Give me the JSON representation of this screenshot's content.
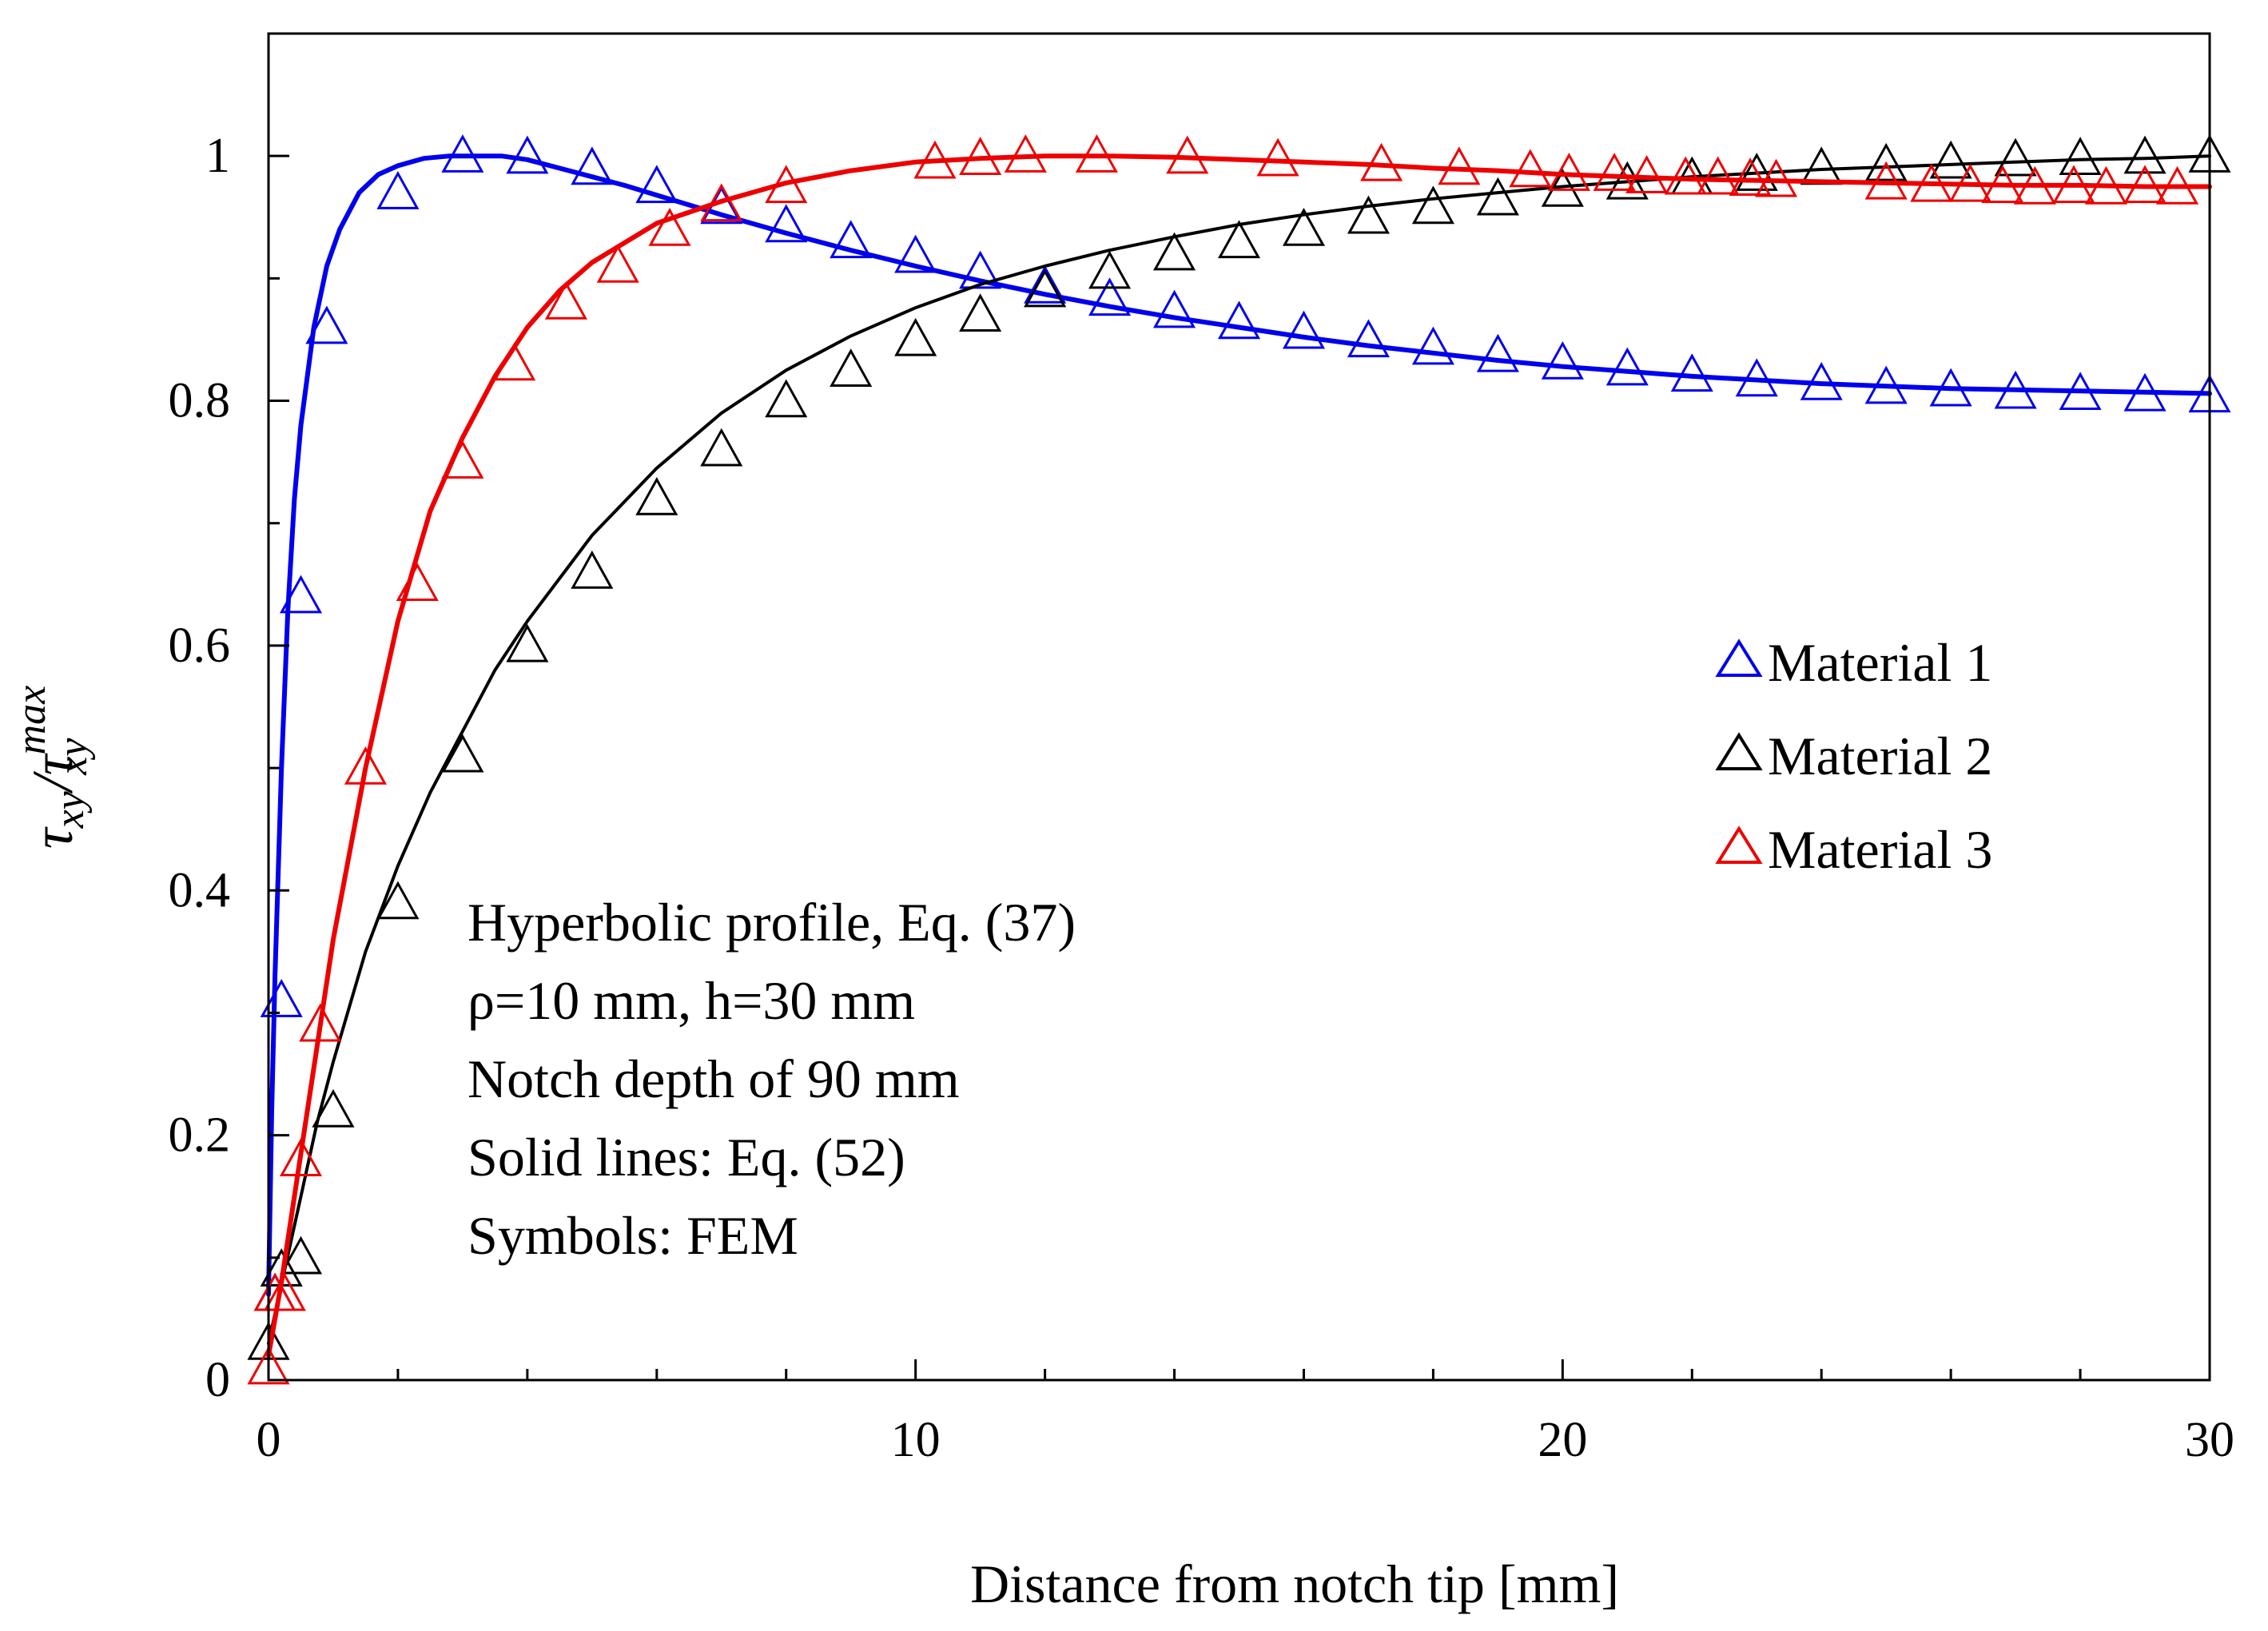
{
  "chart_data": {
    "type": "line",
    "title": "",
    "xlabel": "Distance from notch tip [mm]",
    "ylabel": {
      "main": "τ",
      "sub": "xy",
      "slash": "/",
      "sup": "max"
    },
    "xlim": [
      0,
      30
    ],
    "ylim": [
      0,
      1.1
    ],
    "x_ticks": [
      0,
      10,
      20,
      30
    ],
    "x_tick_labels": [
      "0",
      "10",
      "20",
      "30"
    ],
    "y_ticks": [
      0,
      0.2,
      0.4,
      0.6,
      0.8,
      1
    ],
    "y_tick_labels": [
      "0",
      "0.2",
      "0.4",
      "0.6",
      "0.8",
      "1"
    ],
    "grid": false,
    "legend_position": "right",
    "annotations": [
      "Hyperbolic profile, Eq. (37)",
      "ρ=10 mm, h=30 mm",
      "Notch depth of 90 mm",
      "Solid lines: Eq. (52)",
      "Symbols: FEM"
    ],
    "series": [
      {
        "name": "Material 1",
        "color": "#0000ee",
        "marker": "triangle-open",
        "line_x": [
          0,
          0.05,
          0.1,
          0.2,
          0.3,
          0.4,
          0.5,
          0.7,
          0.9,
          1.1,
          1.4,
          1.7,
          2,
          2.4,
          2.8,
          3.2,
          3.6,
          4,
          4.5,
          5,
          5.5,
          6,
          7,
          8,
          9,
          10,
          11,
          12,
          13,
          14,
          15,
          16,
          17,
          18,
          19,
          20,
          21,
          22,
          23,
          24,
          25,
          26,
          27,
          28,
          29,
          30
        ],
        "line_y": [
          0.07,
          0.22,
          0.33,
          0.5,
          0.63,
          0.72,
          0.78,
          0.86,
          0.91,
          0.94,
          0.97,
          0.985,
          0.992,
          0.998,
          1.0,
          1.0,
          1.0,
          0.997,
          0.99,
          0.983,
          0.976,
          0.968,
          0.952,
          0.937,
          0.923,
          0.91,
          0.898,
          0.887,
          0.877,
          0.868,
          0.86,
          0.852,
          0.845,
          0.839,
          0.833,
          0.828,
          0.824,
          0.82,
          0.817,
          0.814,
          0.812,
          0.81,
          0.809,
          0.808,
          0.807,
          0.806
        ],
        "points_x": [
          0.1,
          0.2,
          0.5,
          0.9,
          2,
          3,
          4,
          5,
          6,
          7,
          8,
          9,
          10,
          11,
          12,
          13,
          14,
          15,
          16,
          17,
          18,
          19,
          20,
          21,
          22,
          23,
          24,
          25,
          26,
          27,
          28,
          29,
          30
        ],
        "points_y": [
          0.07,
          0.31,
          0.64,
          0.86,
          0.97,
          1.0,
          0.999,
          0.99,
          0.975,
          0.958,
          0.943,
          0.93,
          0.918,
          0.905,
          0.893,
          0.883,
          0.873,
          0.864,
          0.856,
          0.849,
          0.843,
          0.837,
          0.831,
          0.826,
          0.821,
          0.817,
          0.814,
          0.811,
          0.809,
          0.807,
          0.806,
          0.805,
          0.804
        ]
      },
      {
        "name": "Material 2",
        "color": "#000000",
        "marker": "triangle-open",
        "line_x": [
          0,
          0.25,
          0.5,
          0.75,
          1,
          1.5,
          2,
          2.5,
          3,
          3.5,
          4,
          5,
          6,
          7,
          8,
          9,
          10,
          11,
          12,
          13,
          14,
          15,
          16,
          17,
          18,
          19,
          20,
          21,
          22,
          23,
          24,
          25,
          26,
          27,
          28,
          29,
          30
        ],
        "line_y": [
          0.03,
          0.09,
          0.15,
          0.21,
          0.26,
          0.35,
          0.42,
          0.48,
          0.53,
          0.58,
          0.62,
          0.69,
          0.745,
          0.79,
          0.825,
          0.853,
          0.876,
          0.895,
          0.91,
          0.923,
          0.934,
          0.944,
          0.952,
          0.959,
          0.965,
          0.97,
          0.975,
          0.979,
          0.983,
          0.986,
          0.989,
          0.991,
          0.993,
          0.995,
          0.997,
          0.998,
          1.0
        ],
        "points_x": [
          0,
          0.2,
          0.5,
          1,
          2,
          3,
          4,
          5,
          6,
          7,
          8,
          9,
          10,
          11,
          12,
          13,
          14,
          15,
          16,
          17,
          18,
          19,
          20,
          21,
          22,
          23,
          24,
          25,
          26,
          27,
          28,
          29,
          30
        ],
        "points_y": [
          0.03,
          0.09,
          0.1,
          0.22,
          0.39,
          0.51,
          0.6,
          0.66,
          0.72,
          0.76,
          0.8,
          0.825,
          0.85,
          0.87,
          0.89,
          0.905,
          0.92,
          0.93,
          0.94,
          0.95,
          0.958,
          0.965,
          0.972,
          0.978,
          0.982,
          0.985,
          0.99,
          0.993,
          0.995,
          0.997,
          0.998,
          0.999,
          1.0
        ]
      },
      {
        "name": "Material 3",
        "color": "#ee0000",
        "marker": "triangle-open",
        "line_x": [
          0,
          0.2,
          0.4,
          0.6,
          0.8,
          1,
          1.5,
          2,
          2.5,
          3,
          3.5,
          4,
          4.5,
          5,
          6,
          7,
          8,
          9,
          10,
          11,
          12,
          13,
          14,
          15,
          16,
          17,
          18,
          19,
          20,
          21,
          22,
          23,
          24,
          25,
          26,
          27,
          28,
          29,
          30
        ],
        "line_y": [
          0.02,
          0.08,
          0.15,
          0.22,
          0.29,
          0.36,
          0.5,
          0.62,
          0.71,
          0.77,
          0.82,
          0.86,
          0.89,
          0.913,
          0.945,
          0.963,
          0.978,
          0.988,
          0.995,
          0.998,
          1.0,
          1.0,
          0.999,
          0.997,
          0.995,
          0.993,
          0.99,
          0.988,
          0.985,
          0.983,
          0.981,
          0.98,
          0.979,
          0.978,
          0.977,
          0.976,
          0.976,
          0.975,
          0.975
        ],
        "points_x": [
          0,
          0.1,
          0.25,
          0.5,
          0.8,
          1.5,
          2.3,
          3,
          3.8,
          4.6,
          5.4,
          6.2,
          7,
          8,
          10.3,
          11,
          11.7,
          12.8,
          14.2,
          15.6,
          17.2,
          18.4,
          19.5,
          20.1,
          20.8,
          21.3,
          21.9,
          22.4,
          22.9,
          23.3,
          25,
          25.7,
          26.3,
          26.8,
          27.3,
          27.9,
          28.4,
          29,
          29.5
        ],
        "points_y": [
          0.01,
          0.07,
          0.07,
          0.18,
          0.29,
          0.5,
          0.65,
          0.75,
          0.83,
          0.88,
          0.91,
          0.94,
          0.96,
          0.975,
          0.995,
          0.998,
          1.0,
          1.0,
          0.999,
          0.997,
          0.993,
          0.99,
          0.988,
          0.985,
          0.985,
          0.983,
          0.982,
          0.982,
          0.981,
          0.98,
          0.978,
          0.976,
          0.976,
          0.975,
          0.974,
          0.975,
          0.974,
          0.975,
          0.974
        ]
      }
    ]
  }
}
